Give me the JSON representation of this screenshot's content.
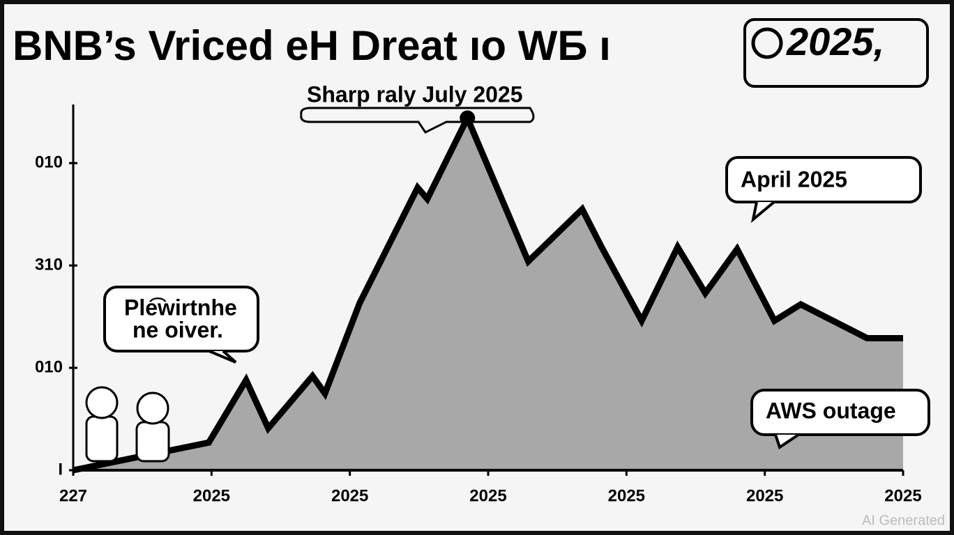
{
  "chart_data": {
    "type": "area",
    "title": "BNB’s Vriced eH Dreat ıo WБ ı",
    "title_badge": "2025,",
    "watermark": "AI Generated",
    "annotations": [
      "Sharp raly July 2025",
      "April 2025",
      "Ple͡wirtnhe",
      "ne oiver.",
      "AWS outage"
    ],
    "x": [
      0,
      0.98,
      1.25,
      1.41,
      1.73,
      1.82,
      2.07,
      2.49,
      2.56,
      2.85,
      3.29,
      3.68,
      3.82,
      4.11,
      4.37,
      4.57,
      4.8,
      5.07,
      5.26,
      5.74,
      6.0
    ],
    "values": [
      0,
      0.27,
      0.88,
      0.41,
      0.92,
      0.75,
      1.63,
      2.76,
      2.65,
      3.44,
      2.04,
      2.55,
      2.18,
      1.46,
      2.18,
      1.73,
      2.16,
      1.46,
      1.62,
      1.29,
      1.29
    ],
    "color": "#a8a8a8",
    "line_color": "#000000",
    "xlim": [
      0,
      6
    ],
    "xticks": [
      {
        "value": 0,
        "label": "227"
      },
      {
        "value": 1,
        "label": "2025"
      },
      {
        "value": 2,
        "label": "2025"
      },
      {
        "value": 3,
        "label": "2025"
      },
      {
        "value": 4,
        "label": "2025"
      },
      {
        "value": 5,
        "label": "2025"
      },
      {
        "value": 6,
        "label": "2025"
      }
    ],
    "ylim": [
      0,
      3.6
    ],
    "yticks": [
      {
        "value": 0,
        "label": "I"
      },
      {
        "value": 1,
        "label": "010"
      },
      {
        "value": 2,
        "label": "310"
      },
      {
        "value": 3,
        "label": "010"
      }
    ],
    "grid": false
  }
}
